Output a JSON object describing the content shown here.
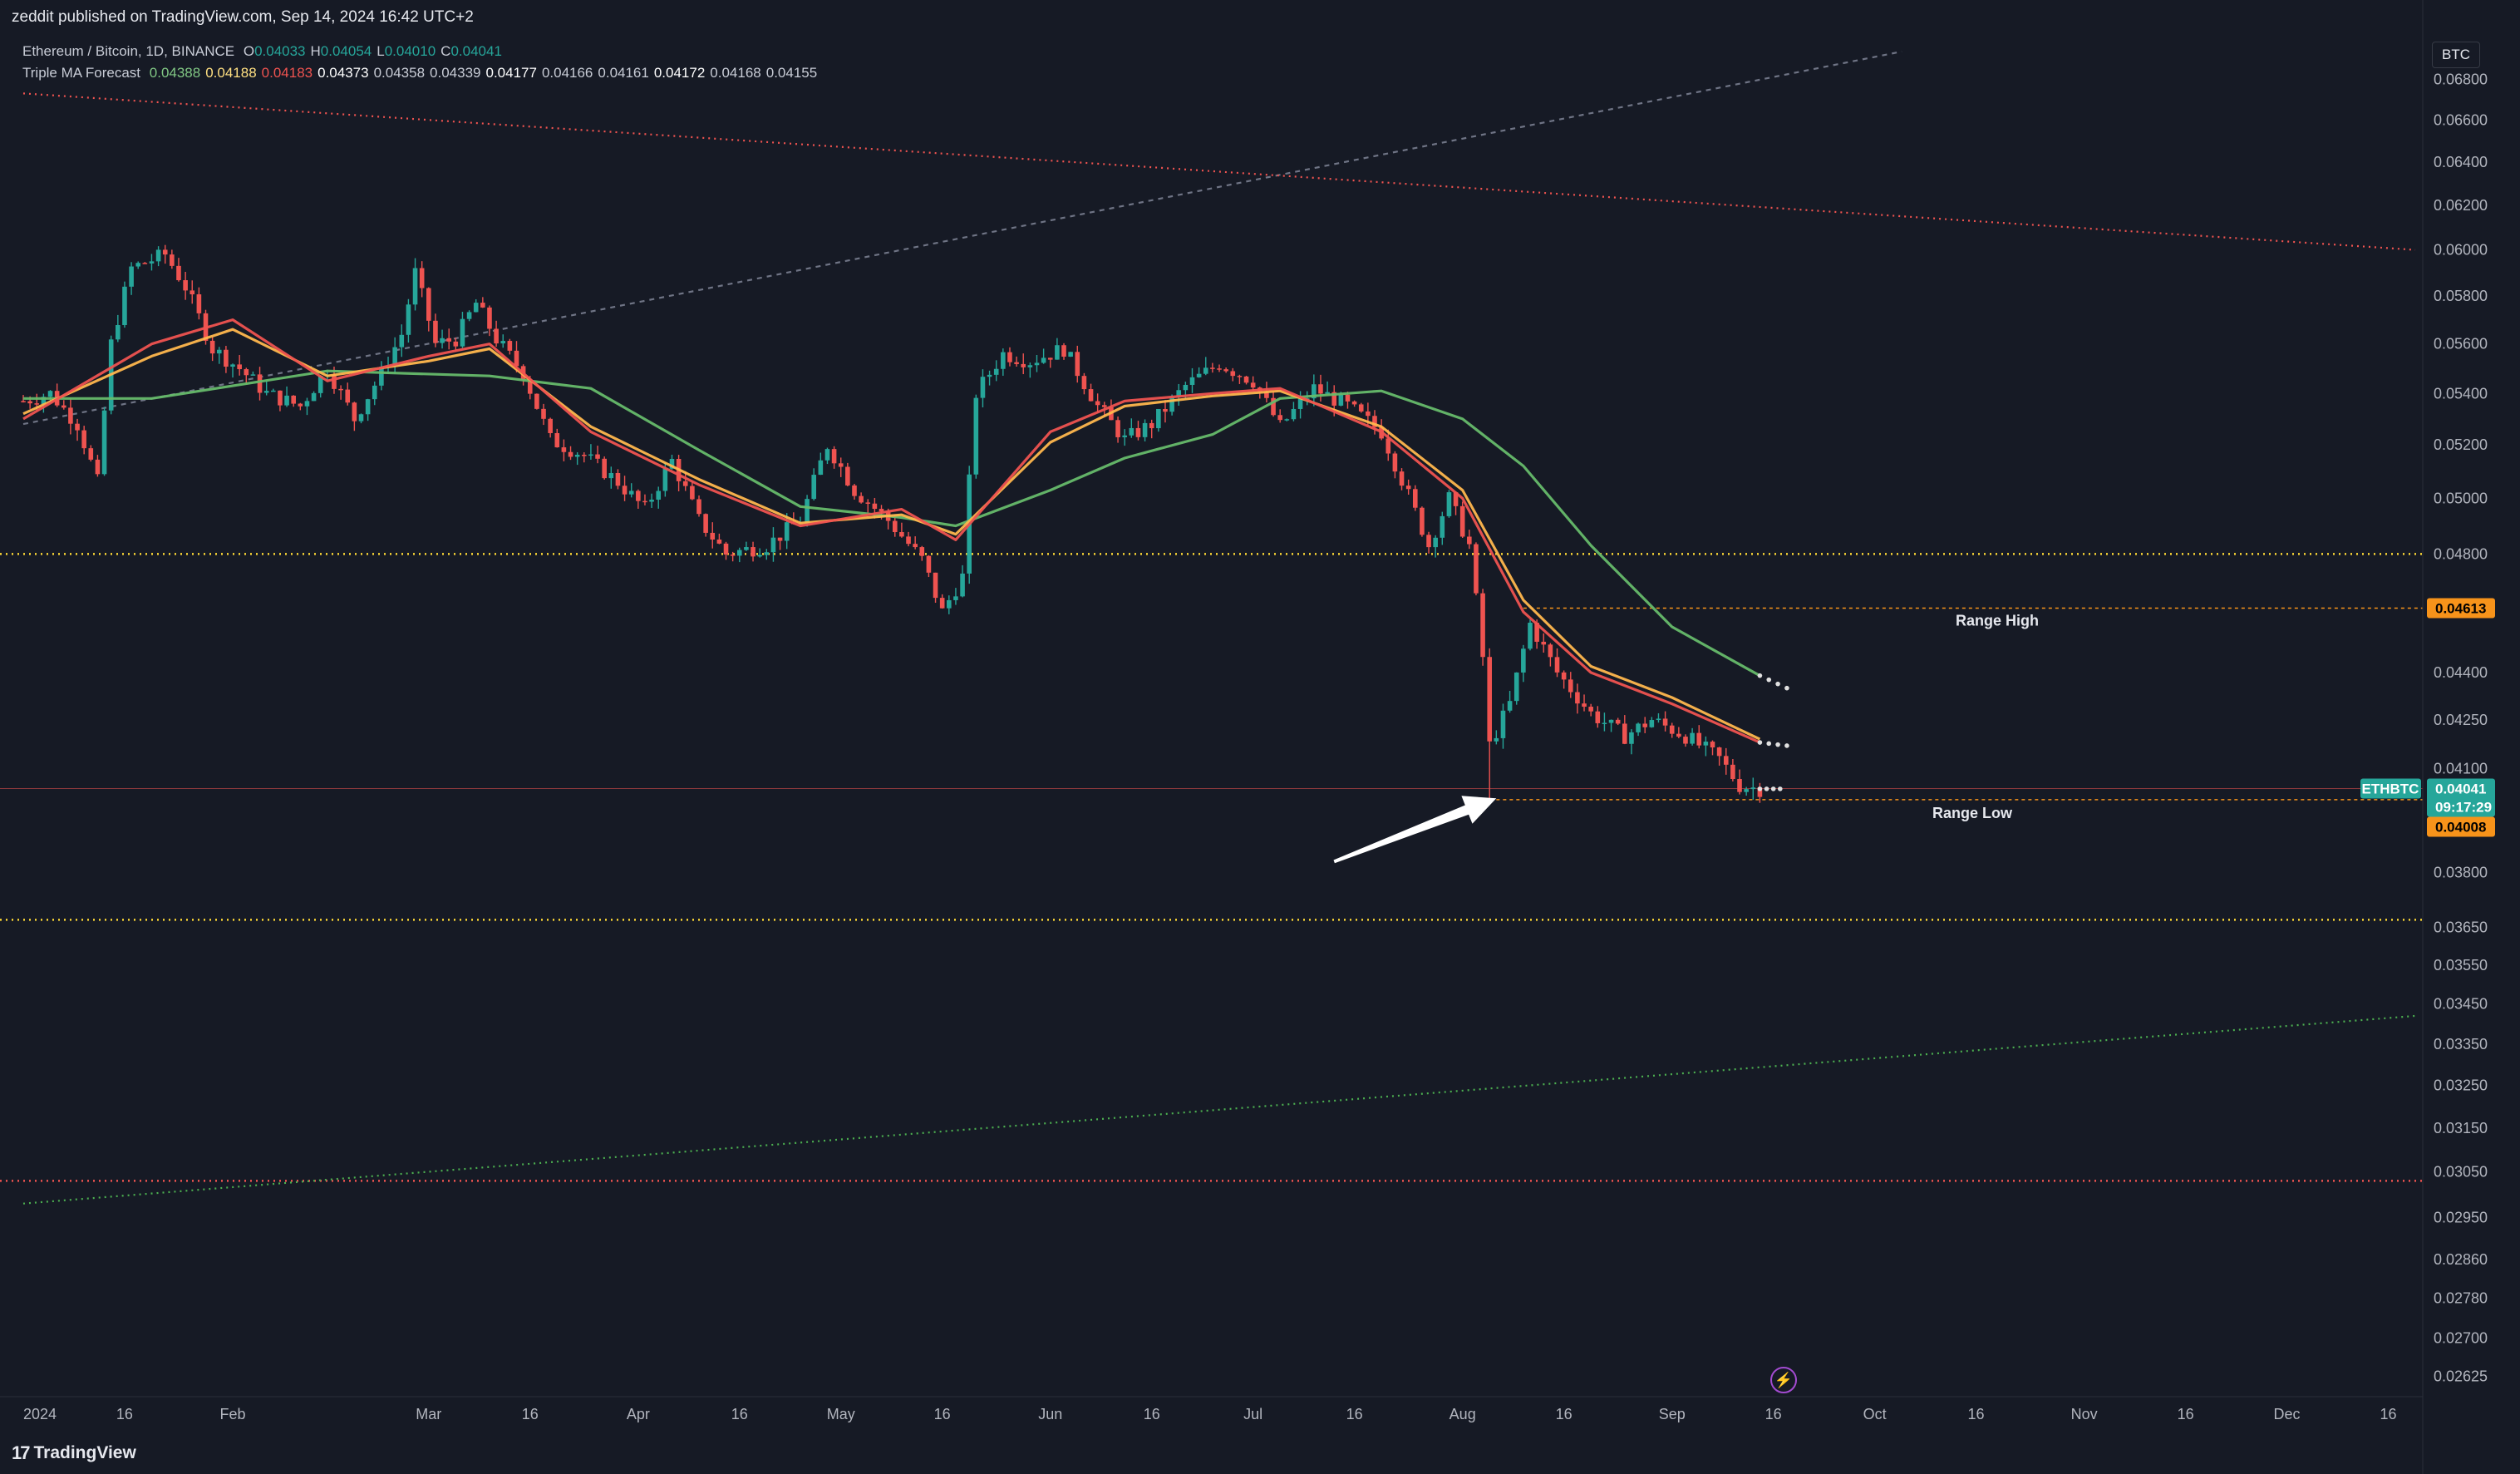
{
  "header": {
    "publisher": "zeddit published on TradingView.com, Sep 14, 2024 16:42 UTC+2",
    "symbol": "Ethereum / Bitcoin, 1D, BINANCE",
    "ohlc": [
      {
        "k": "O",
        "v": "0.04033"
      },
      {
        "k": "H",
        "v": "0.04054"
      },
      {
        "k": "L",
        "v": "0.04010"
      },
      {
        "k": "C",
        "v": "0.04041"
      }
    ],
    "indicator_name": "Triple MA Forecast",
    "indicator_values": [
      {
        "v": "0.04388",
        "color": "#81c784"
      },
      {
        "v": "0.04188",
        "color": "#ffe082"
      },
      {
        "v": "0.04183",
        "color": "#ef5350"
      },
      {
        "v": "0.04373",
        "color": "#ffffff"
      },
      {
        "v": "0.04358",
        "color": "#c8ccd6"
      },
      {
        "v": "0.04339",
        "color": "#c8ccd6"
      },
      {
        "v": "0.04177",
        "color": "#ffffff"
      },
      {
        "v": "0.04166",
        "color": "#c8ccd6"
      },
      {
        "v": "0.04161",
        "color": "#c8ccd6"
      },
      {
        "v": "0.04172",
        "color": "#ffffff"
      },
      {
        "v": "0.04168",
        "color": "#c8ccd6"
      },
      {
        "v": "0.04155",
        "color": "#c8ccd6"
      }
    ]
  },
  "currency_button": "BTC",
  "footer": {
    "brand": "TradingView",
    "logo": "17"
  },
  "colors": {
    "background": "#161a25",
    "up": "#26a69a",
    "down": "#ef5350",
    "ma_fast": "#ef5350",
    "ma_mid": "#ffb74d",
    "ma_slow": "#66bb6a",
    "level_yellow": "#fdd835",
    "range_tag": "#f7931a",
    "symbol_tag": "#26a69a"
  },
  "chart_data": {
    "type": "candlestick",
    "ylabel": "BTC",
    "scale": "log",
    "ylim": [
      0.0261,
      0.0694
    ],
    "y_ticks": [
      "0.06800",
      "0.06600",
      "0.06400",
      "0.06200",
      "0.06000",
      "0.05800",
      "0.05600",
      "0.05400",
      "0.05200",
      "0.05000",
      "0.04800",
      "0.04400",
      "0.04250",
      "0.04100",
      "0.03800",
      "0.03650",
      "0.03550",
      "0.03450",
      "0.03350",
      "0.03250",
      "0.03150",
      "0.03050",
      "0.02950",
      "0.02860",
      "0.02780",
      "0.02700",
      "0.02625"
    ],
    "x_ticks": [
      {
        "label": "2024",
        "date": "2024-01-01"
      },
      {
        "label": "16",
        "date": "2024-01-16"
      },
      {
        "label": "Feb",
        "date": "2024-02-01"
      },
      {
        "label": "Mar",
        "date": "2024-03-01"
      },
      {
        "label": "16",
        "date": "2024-03-16"
      },
      {
        "label": "Apr",
        "date": "2024-04-01"
      },
      {
        "label": "16",
        "date": "2024-04-16"
      },
      {
        "label": "May",
        "date": "2024-05-01"
      },
      {
        "label": "16",
        "date": "2024-05-16"
      },
      {
        "label": "Jun",
        "date": "2024-06-01"
      },
      {
        "label": "16",
        "date": "2024-06-16"
      },
      {
        "label": "Jul",
        "date": "2024-07-01"
      },
      {
        "label": "16",
        "date": "2024-07-16"
      },
      {
        "label": "Aug",
        "date": "2024-08-01"
      },
      {
        "label": "16",
        "date": "2024-08-16"
      },
      {
        "label": "Sep",
        "date": "2024-09-01"
      },
      {
        "label": "16",
        "date": "2024-09-16"
      },
      {
        "label": "Oct",
        "date": "2024-10-01"
      },
      {
        "label": "16",
        "date": "2024-10-16"
      },
      {
        "label": "Nov",
        "date": "2024-11-01"
      },
      {
        "label": "16",
        "date": "2024-11-16"
      },
      {
        "label": "Dec",
        "date": "2024-12-01"
      },
      {
        "label": "16",
        "date": "2024-12-16"
      }
    ],
    "price_path": [
      [
        "2024-01-01",
        0.0537
      ],
      [
        "2024-01-05",
        0.054
      ],
      [
        "2024-01-09",
        0.0528
      ],
      [
        "2024-01-12",
        0.0506
      ],
      [
        "2024-01-14",
        0.056
      ],
      [
        "2024-01-17",
        0.0592
      ],
      [
        "2024-01-22",
        0.0598
      ],
      [
        "2024-01-25",
        0.0584
      ],
      [
        "2024-01-29",
        0.0558
      ],
      [
        "2024-02-02",
        0.055
      ],
      [
        "2024-02-06",
        0.054
      ],
      [
        "2024-02-11",
        0.0535
      ],
      [
        "2024-02-15",
        0.055
      ],
      [
        "2024-02-19",
        0.053
      ],
      [
        "2024-02-23",
        0.0548
      ],
      [
        "2024-02-26",
        0.0564
      ],
      [
        "2024-02-28",
        0.059
      ],
      [
        "2024-03-02",
        0.056
      ],
      [
        "2024-03-05",
        0.0562
      ],
      [
        "2024-03-08",
        0.0577
      ],
      [
        "2024-03-11",
        0.0562
      ],
      [
        "2024-03-15",
        0.0548
      ],
      [
        "2024-03-19",
        0.0522
      ],
      [
        "2024-03-24",
        0.0516
      ],
      [
        "2024-03-29",
        0.0506
      ],
      [
        "2024-04-02",
        0.0496
      ],
      [
        "2024-04-06",
        0.0514
      ],
      [
        "2024-04-10",
        0.0492
      ],
      [
        "2024-04-14",
        0.048
      ],
      [
        "2024-04-20",
        0.0483
      ],
      [
        "2024-04-25",
        0.0492
      ],
      [
        "2024-04-29",
        0.052
      ],
      [
        "2024-05-03",
        0.0503
      ],
      [
        "2024-05-08",
        0.0492
      ],
      [
        "2024-05-13",
        0.0478
      ],
      [
        "2024-05-16",
        0.046
      ],
      [
        "2024-05-19",
        0.0472
      ],
      [
        "2024-05-21",
        0.054
      ],
      [
        "2024-05-25",
        0.0556
      ],
      [
        "2024-05-29",
        0.0553
      ],
      [
        "2024-06-03",
        0.0558
      ],
      [
        "2024-06-08",
        0.0535
      ],
      [
        "2024-06-12",
        0.0522
      ],
      [
        "2024-06-16",
        0.0528
      ],
      [
        "2024-06-21",
        0.0543
      ],
      [
        "2024-06-26",
        0.0552
      ],
      [
        "2024-07-01",
        0.0545
      ],
      [
        "2024-07-05",
        0.0527
      ],
      [
        "2024-07-10",
        0.0542
      ],
      [
        "2024-07-15",
        0.0535
      ],
      [
        "2024-07-20",
        0.0525
      ],
      [
        "2024-07-23",
        0.0507
      ],
      [
        "2024-07-27",
        0.0483
      ],
      [
        "2024-07-30",
        0.05
      ],
      [
        "2024-08-02",
        0.0483
      ],
      [
        "2024-08-04",
        0.0445
      ],
      [
        "2024-08-05",
        0.0417
      ],
      [
        "2024-08-08",
        0.043
      ],
      [
        "2024-08-11",
        0.0456
      ],
      [
        "2024-08-15",
        0.044
      ],
      [
        "2024-08-20",
        0.0427
      ],
      [
        "2024-08-25",
        0.042
      ],
      [
        "2024-08-29",
        0.0425
      ],
      [
        "2024-09-03",
        0.042
      ],
      [
        "2024-09-08",
        0.0413
      ],
      [
        "2024-09-11",
        0.0405
      ],
      [
        "2024-09-14",
        0.0404
      ]
    ],
    "moving_averages": [
      {
        "name": "fast",
        "color": "#ef5350",
        "points": [
          [
            "2024-01-01",
            0.053
          ],
          [
            "2024-01-20",
            0.056
          ],
          [
            "2024-02-01",
            0.057
          ],
          [
            "2024-02-15",
            0.0545
          ],
          [
            "2024-03-01",
            0.0555
          ],
          [
            "2024-03-10",
            0.056
          ],
          [
            "2024-03-25",
            0.0525
          ],
          [
            "2024-04-10",
            0.0505
          ],
          [
            "2024-04-25",
            0.049
          ],
          [
            "2024-05-10",
            0.0496
          ],
          [
            "2024-05-18",
            0.0485
          ],
          [
            "2024-06-01",
            0.0525
          ],
          [
            "2024-06-12",
            0.0537
          ],
          [
            "2024-06-25",
            0.054
          ],
          [
            "2024-07-05",
            0.0542
          ],
          [
            "2024-07-20",
            0.0525
          ],
          [
            "2024-08-01",
            0.05
          ],
          [
            "2024-08-10",
            0.046
          ],
          [
            "2024-08-20",
            0.044
          ],
          [
            "2024-09-01",
            0.043
          ],
          [
            "2024-09-14",
            0.0418
          ]
        ]
      },
      {
        "name": "mid",
        "color": "#ffb74d",
        "points": [
          [
            "2024-01-01",
            0.0532
          ],
          [
            "2024-01-20",
            0.0555
          ],
          [
            "2024-02-01",
            0.0566
          ],
          [
            "2024-02-15",
            0.0547
          ],
          [
            "2024-03-01",
            0.0553
          ],
          [
            "2024-03-10",
            0.0558
          ],
          [
            "2024-03-25",
            0.0527
          ],
          [
            "2024-04-10",
            0.0507
          ],
          [
            "2024-04-25",
            0.0491
          ],
          [
            "2024-05-10",
            0.0494
          ],
          [
            "2024-05-18",
            0.0487
          ],
          [
            "2024-06-01",
            0.0521
          ],
          [
            "2024-06-12",
            0.0535
          ],
          [
            "2024-06-25",
            0.0539
          ],
          [
            "2024-07-05",
            0.0541
          ],
          [
            "2024-07-20",
            0.0527
          ],
          [
            "2024-08-01",
            0.0503
          ],
          [
            "2024-08-10",
            0.0464
          ],
          [
            "2024-08-20",
            0.0442
          ],
          [
            "2024-09-01",
            0.0432
          ],
          [
            "2024-09-14",
            0.0419
          ]
        ]
      },
      {
        "name": "slow",
        "color": "#66bb6a",
        "points": [
          [
            "2024-01-01",
            0.0538
          ],
          [
            "2024-01-20",
            0.0538
          ],
          [
            "2024-02-15",
            0.0549
          ],
          [
            "2024-03-10",
            0.0547
          ],
          [
            "2024-03-25",
            0.0542
          ],
          [
            "2024-04-10",
            0.0518
          ],
          [
            "2024-04-25",
            0.0497
          ],
          [
            "2024-05-10",
            0.0493
          ],
          [
            "2024-05-18",
            0.049
          ],
          [
            "2024-06-01",
            0.0503
          ],
          [
            "2024-06-12",
            0.0515
          ],
          [
            "2024-06-25",
            0.0524
          ],
          [
            "2024-07-05",
            0.0538
          ],
          [
            "2024-07-20",
            0.0541
          ],
          [
            "2024-08-01",
            0.053
          ],
          [
            "2024-08-10",
            0.0512
          ],
          [
            "2024-08-20",
            0.0483
          ],
          [
            "2024-09-01",
            0.0455
          ],
          [
            "2024-09-14",
            0.0439
          ]
        ]
      }
    ],
    "forecast_dots": [
      {
        "from": [
          "2024-09-14",
          0.0439
        ],
        "to": [
          "2024-09-18",
          0.0435
        ]
      },
      {
        "from": [
          "2024-09-14",
          0.0418
        ],
        "to": [
          "2024-09-18",
          0.0417
        ]
      },
      {
        "from": [
          "2024-09-14",
          0.0404
        ],
        "to": [
          "2024-09-17",
          0.0404
        ]
      }
    ],
    "levels": [
      {
        "name": "yellow-dotted-upper",
        "price": 0.048,
        "color": "#fdd835",
        "style": "dotted"
      },
      {
        "name": "yellow-dotted-lower",
        "price": 0.0367,
        "color": "#fdd835",
        "style": "dotted"
      },
      {
        "name": "red-dotted-bottom",
        "price": 0.0303,
        "color": "#ef5350",
        "style": "dotted"
      },
      {
        "name": "current-price-line",
        "price": 0.04041,
        "color": "#ef5350",
        "style": "solid-thin"
      }
    ],
    "trendlines": [
      {
        "name": "upper-grey-dashed",
        "from": [
          "2024-01-01",
          0.0528
        ],
        "to": [
          "2024-10-05",
          0.0694
        ],
        "color": "#6f7485"
      },
      {
        "name": "red-dotted-descending",
        "from": [
          "2024-01-01",
          0.0673
        ],
        "to": [
          "2024-12-20",
          0.06
        ],
        "color": "#ef5350"
      },
      {
        "name": "green-dotted-ascending",
        "from": [
          "2024-01-01",
          0.0298
        ],
        "to": [
          "2024-12-20",
          0.0342
        ],
        "color": "#4caf50"
      }
    ],
    "ranges": [
      {
        "label": "Range High",
        "price": 0.04613,
        "tag": "0.04613",
        "start": "2024-08-10"
      },
      {
        "label": "Range Low",
        "price": 0.04008,
        "tag": "0.04008",
        "start": "2024-08-06"
      }
    ],
    "symbol_tag": {
      "name": "ETHBTC",
      "price_text": "0.04041",
      "countdown": "09:17:29",
      "price": 0.04041
    },
    "arrow": {
      "from": [
        "2024-07-13",
        0.0383
      ],
      "to": [
        "2024-08-06",
        0.04012
      ]
    }
  }
}
